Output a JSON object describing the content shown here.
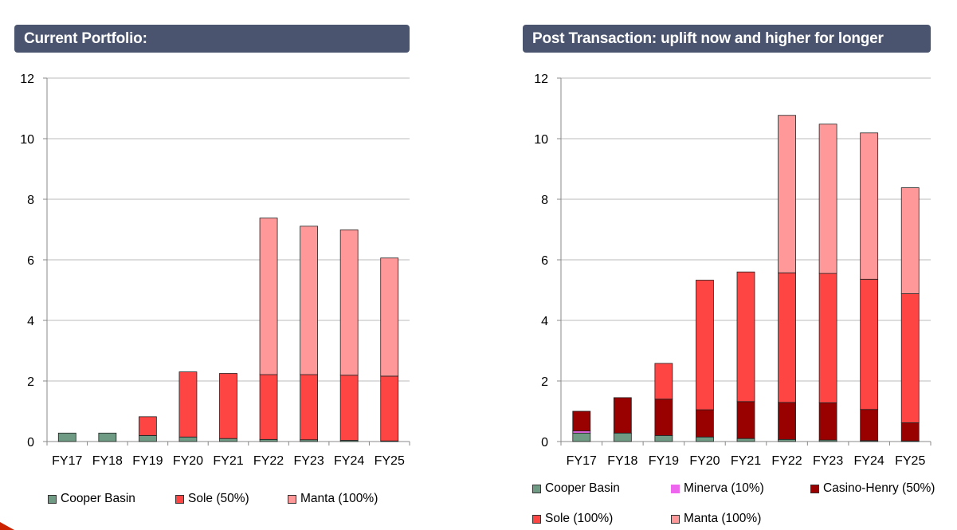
{
  "left_panel": {
    "title": "Current Portfolio:"
  },
  "right_panel": {
    "title": "Post Transaction: uplift now and higher for longer"
  },
  "colors": {
    "Cooper Basin": "#6f9a83",
    "Minerva (10%)": "#ee66ee",
    "Casino-Henry (50%)": "#990000",
    "Sole (50%)": "#ff4444",
    "Sole (100%)": "#ff4444",
    "Manta (100%)": "#ff9999"
  },
  "chart_data": [
    {
      "type": "bar",
      "stacked": true,
      "title": "Current Portfolio:",
      "categories": [
        "FY17",
        "FY18",
        "FY19",
        "FY20",
        "FY21",
        "FY22",
        "FY23",
        "FY24",
        "FY25"
      ],
      "ylim": [
        0,
        12
      ],
      "yticks": [
        0,
        2,
        4,
        6,
        8,
        10,
        12
      ],
      "grid": true,
      "legend_position": "bottom",
      "series": [
        {
          "name": "Cooper Basin",
          "values": [
            0.28,
            0.28,
            0.2,
            0.15,
            0.1,
            0.07,
            0.06,
            0.04,
            0.02
          ]
        },
        {
          "name": "Sole (50%)",
          "values": [
            0,
            0,
            0.62,
            2.15,
            2.15,
            2.14,
            2.15,
            2.15,
            2.14
          ]
        },
        {
          "name": "Manta (100%)",
          "values": [
            0,
            0,
            0,
            0,
            0,
            5.17,
            4.9,
            4.8,
            3.9
          ]
        }
      ]
    },
    {
      "type": "bar",
      "stacked": true,
      "title": "Post Transaction: uplift now and higher for longer",
      "categories": [
        "FY17",
        "FY18",
        "FY19",
        "FY20",
        "FY21",
        "FY22",
        "FY23",
        "FY24",
        "FY25"
      ],
      "ylim": [
        0,
        12
      ],
      "yticks": [
        0,
        2,
        4,
        6,
        8,
        10,
        12
      ],
      "grid": true,
      "legend_position": "bottom",
      "series": [
        {
          "name": "Cooper Basin",
          "values": [
            0.28,
            0.28,
            0.2,
            0.15,
            0.1,
            0.07,
            0.05,
            0.03,
            0.02
          ]
        },
        {
          "name": "Minerva (10%)",
          "values": [
            0.07,
            0,
            0,
            0,
            0,
            0,
            0,
            0,
            0
          ]
        },
        {
          "name": "Casino-Henry (50%)",
          "values": [
            0.65,
            1.17,
            1.2,
            0.9,
            1.22,
            1.22,
            1.23,
            1.03,
            0.6
          ]
        },
        {
          "name": "Sole (100%)",
          "values": [
            0,
            0,
            1.18,
            4.28,
            4.28,
            4.28,
            4.27,
            4.3,
            4.26
          ]
        },
        {
          "name": "Manta (100%)",
          "values": [
            0,
            0,
            0,
            0,
            0,
            5.2,
            4.93,
            4.83,
            3.5
          ]
        }
      ]
    }
  ]
}
